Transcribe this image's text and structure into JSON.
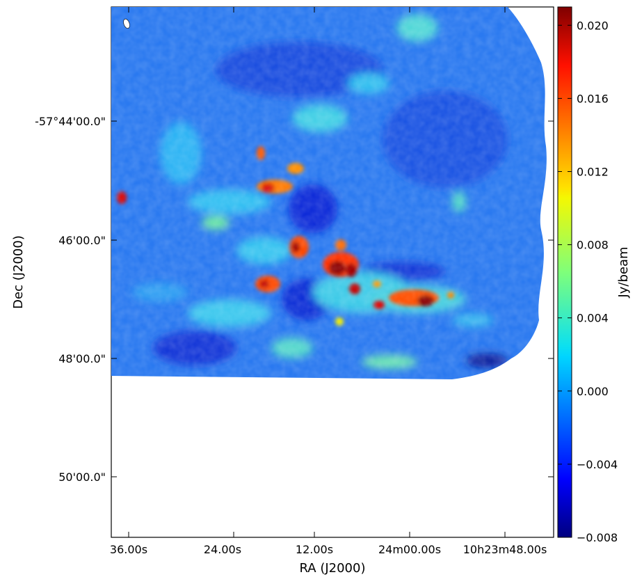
{
  "chart_data": {
    "type": "heatmap",
    "title": "",
    "xlabel": "RA (J2000)",
    "ylabel": "Dec (J2000)",
    "x_ticks": [
      "36.00s",
      "24.00s",
      "12.00s",
      "24m00.00s",
      "10h23m48.00s"
    ],
    "y_ticks": [
      "-57°44'00.0\"",
      "46'00.0\"",
      "48'00.0\"",
      "50'00.0\""
    ],
    "colorbar": {
      "label": "Jy/beam",
      "range": [
        -0.008,
        0.021
      ],
      "ticks": [
        "0.020",
        "0.016",
        "0.012",
        "0.008",
        "0.004",
        "0.000",
        "−0.004",
        "−0.008"
      ],
      "tick_values": [
        0.02,
        0.016,
        0.012,
        0.008,
        0.004,
        0.0,
        -0.004,
        -0.008
      ],
      "colormap": "jet"
    },
    "bright_sources": [
      {
        "description": "strongest peaks",
        "value": 0.021
      },
      {
        "description": "moderate knots",
        "value": 0.016
      }
    ]
  }
}
